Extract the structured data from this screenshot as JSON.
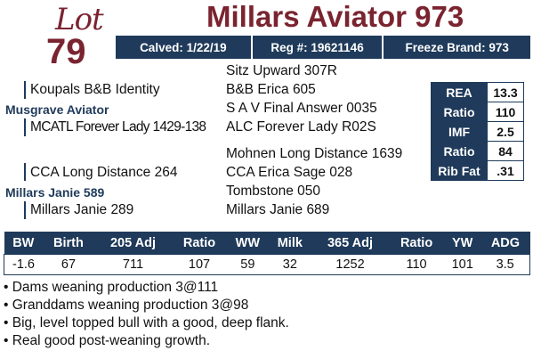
{
  "lot": {
    "word": "Lot",
    "number": "79"
  },
  "bull_name": "Millars Aviator 973",
  "info_bar": {
    "calved": "Calved: 1/22/19",
    "reg": "Reg #: 19621146",
    "brand": "Freeze Brand: 973"
  },
  "pedigree": {
    "sire_sire_sire": "Sitz Upward 307R",
    "sire_sire": "Koupals B&B Identity",
    "sire_sire_dam": "B&B Erica 605",
    "sire": "Musgrave Aviator",
    "sire_dam_sire": "S A V Final Answer 0035",
    "sire_dam": "MCATL Forever Lady 1429-138",
    "sire_dam_dam": "ALC Forever Lady R02S",
    "dam_sire_sire": "Mohnen Long Distance 1639",
    "dam_sire": "CCA Long Distance 264",
    "dam_sire_dam": "CCA Erica Sage 028",
    "dam": "Millars Janie 589",
    "dam_dam_sire": "Tombstone 050",
    "dam_dam": "Millars Janie 289",
    "dam_dam_dam": "Millars Janie 689"
  },
  "carcass": [
    {
      "label": "REA",
      "value": "13.3"
    },
    {
      "label": "Ratio",
      "value": "110"
    },
    {
      "label": "IMF",
      "value": "2.5"
    },
    {
      "label": "Ratio",
      "value": "84"
    },
    {
      "label": "Rib Fat",
      "value": ".31"
    }
  ],
  "performance": {
    "headers": [
      "BW",
      "Birth",
      "205 Adj",
      "Ratio",
      "WW",
      "Milk",
      "365 Adj",
      "Ratio",
      "YW",
      "ADG"
    ],
    "values": [
      "-1.6",
      "67",
      "711",
      "107",
      "59",
      "32",
      "1252",
      "110",
      "101",
      "3.5"
    ]
  },
  "notes": [
    "Dams weaning production 3@111",
    "Granddams weaning production 3@98",
    "Big, level topped bull with a good, deep flank.",
    "Real good post-weaning growth."
  ],
  "colors": {
    "maroon": "#7a2430",
    "navy": "#1f3a5a"
  }
}
